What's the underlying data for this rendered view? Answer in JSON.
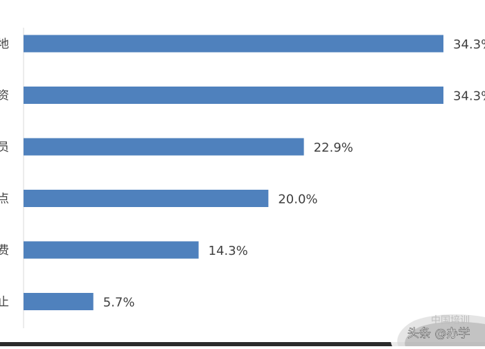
{
  "chart_data": {
    "type": "bar",
    "orientation": "horizontal",
    "categories": [
      "地",
      "资",
      "员",
      "点",
      "费",
      "止"
    ],
    "values": [
      34.3,
      34.3,
      22.9,
      20.0,
      14.3,
      5.7
    ],
    "data_labels": [
      "34.3%",
      "34.3%",
      "22.9%",
      "20.0%",
      "14.3%",
      "5.7%"
    ],
    "xlim": [
      0,
      34.3
    ],
    "grid": false,
    "colors": {
      "bar": "#4f81bd",
      "text": "#404040",
      "axis": "#d9d9d9"
    }
  },
  "watermark": {
    "text": "头条 @办学",
    "behind_text": "中国培训"
  }
}
